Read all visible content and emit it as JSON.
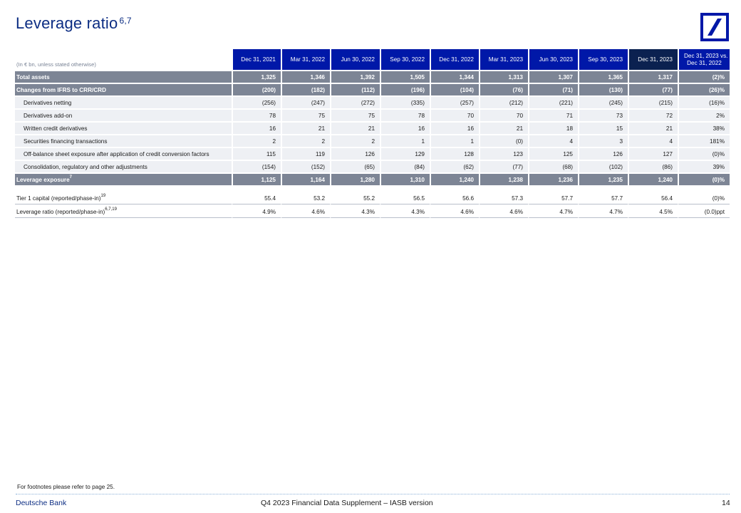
{
  "title": "Leverage ratio",
  "title_footnote": "6,7",
  "logo": {
    "icon": "deutsche-bank-logo",
    "color": "#0018a8"
  },
  "table": {
    "unit_label": "(In € bn, unless stated otherwise)",
    "columns": [
      "Dec 31, 2021",
      "Mar 31, 2022",
      "Jun 30, 2022",
      "Sep 30, 2022",
      "Dec 31, 2022",
      "Mar 31, 2023",
      "Jun 30, 2023",
      "Sep 30, 2023",
      "Dec 31, 2023"
    ],
    "comparison_header": [
      "Dec 31, 2023 vs.",
      "Dec 31, 2022"
    ],
    "rows": [
      {
        "label": "Total assets",
        "values": [
          "1,325",
          "1,346",
          "1,392",
          "1,505",
          "1,344",
          "1,313",
          "1,307",
          "1,365",
          "1,317",
          "(2)%"
        ]
      },
      {
        "label": "Changes from IFRS to CRR/CRD",
        "values": [
          "(200)",
          "(182)",
          "(112)",
          "(196)",
          "(104)",
          "(76)",
          "(71)",
          "(130)",
          "(77)",
          "(26)%"
        ]
      },
      {
        "label": "Derivatives netting",
        "values": [
          "(256)",
          "(247)",
          "(272)",
          "(335)",
          "(257)",
          "(212)",
          "(221)",
          "(245)",
          "(215)",
          "(16)%"
        ]
      },
      {
        "label": "Derivatives add-on",
        "values": [
          "78",
          "75",
          "75",
          "78",
          "70",
          "70",
          "71",
          "73",
          "72",
          "2%"
        ]
      },
      {
        "label": "Written credit derivatives",
        "values": [
          "16",
          "21",
          "21",
          "16",
          "16",
          "21",
          "18",
          "15",
          "21",
          "38%"
        ]
      },
      {
        "label": "Securities financing transactions",
        "values": [
          "2",
          "2",
          "2",
          "1",
          "1",
          "(0)",
          "4",
          "3",
          "4",
          "181%"
        ]
      },
      {
        "label": "Off-balance sheet exposure after application of credit conversion factors",
        "values": [
          "115",
          "119",
          "126",
          "129",
          "128",
          "123",
          "125",
          "126",
          "127",
          "(0)%"
        ]
      },
      {
        "label": "Consolidation, regulatory and other adjustments",
        "values": [
          "(154)",
          "(152)",
          "(65)",
          "(84)",
          "(62)",
          "(77)",
          "(68)",
          "(102)",
          "(86)",
          "39%"
        ]
      },
      {
        "label": "Leverage exposure",
        "footnote": "7",
        "values": [
          "1,125",
          "1,164",
          "1,280",
          "1,310",
          "1,240",
          "1,238",
          "1,236",
          "1,235",
          "1,240",
          "(0)%"
        ]
      },
      {
        "label": "Tier 1 capital (reported/phase-in)",
        "footnote": "19",
        "values": [
          "55.4",
          "53.2",
          "55.2",
          "56.5",
          "56.6",
          "57.3",
          "57.7",
          "57.7",
          "56.4",
          "(0)%"
        ]
      },
      {
        "label": "Leverage ratio (reported/phase-in)",
        "footnote": "6,7,19",
        "values": [
          "4.9%",
          "4.6%",
          "4.3%",
          "4.3%",
          "4.6%",
          "4.6%",
          "4.7%",
          "4.7%",
          "4.5%",
          "(0.0)ppt"
        ]
      }
    ]
  },
  "footnote_text": "For footnotes please refer to page 25.",
  "footer": {
    "brand": "Deutsche Bank",
    "document": "Q4 2023 Financial Data Supplement – IASB version",
    "page": "14"
  },
  "colors": {
    "header_blue": "#0018a8",
    "header_dark": "#0b2150",
    "title_blue": "#0c2d83",
    "bold_row_grey": "#7d8595",
    "row_light": "#eef0f4"
  }
}
